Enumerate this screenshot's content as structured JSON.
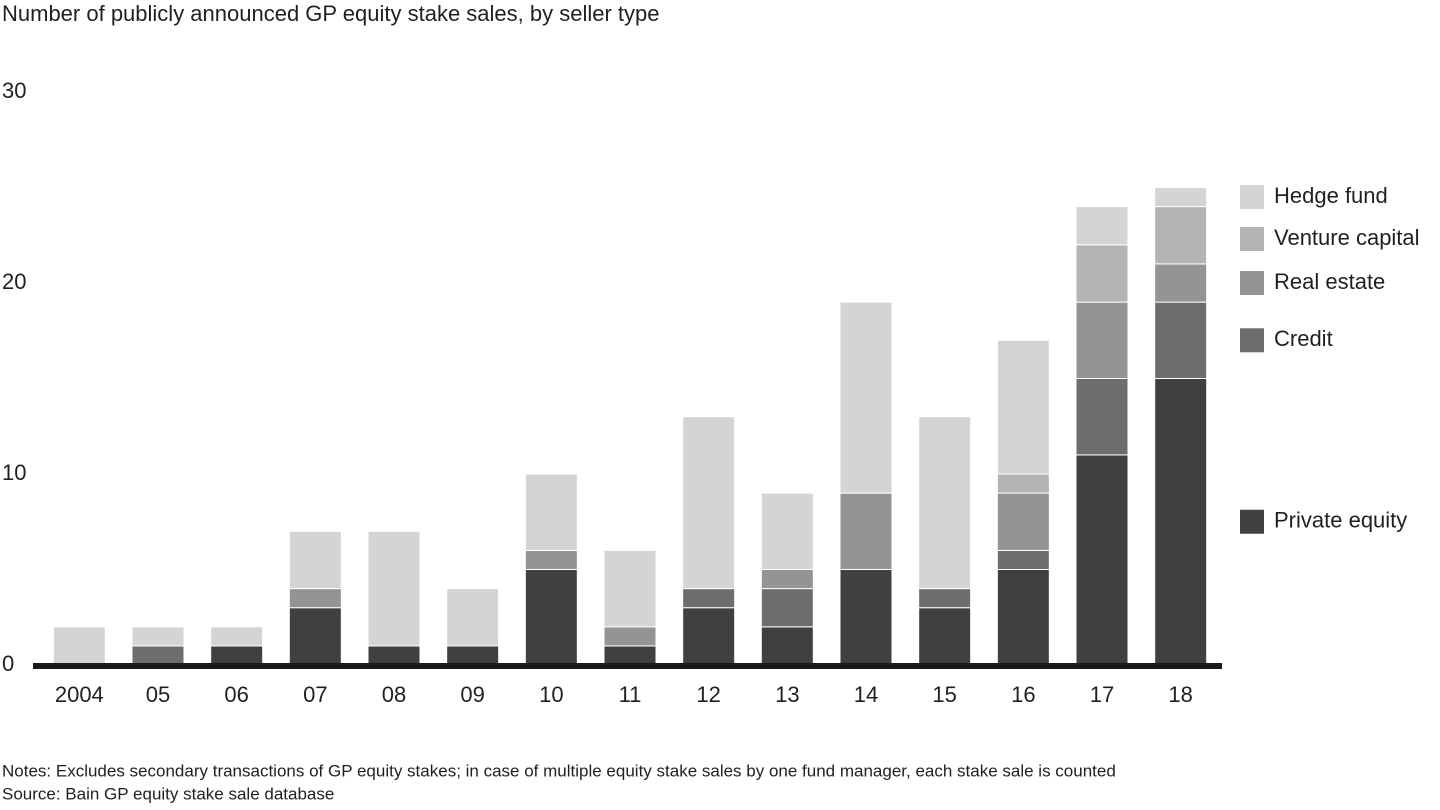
{
  "chart_data": {
    "type": "stacked_bar",
    "title": "Number of publicly announced GP equity stake sales, by seller type",
    "categories": [
      "2004",
      "05",
      "06",
      "07",
      "08",
      "09",
      "10",
      "11",
      "12",
      "13",
      "14",
      "15",
      "16",
      "17",
      "18"
    ],
    "series": [
      {
        "name": "Private equity",
        "color": "#404040",
        "values": [
          0,
          0,
          1,
          3,
          1,
          1,
          5,
          1,
          3,
          2,
          5,
          3,
          5,
          11,
          15
        ]
      },
      {
        "name": "Credit",
        "color": "#6d6d6e",
        "values": [
          0,
          1,
          0,
          0,
          0,
          0,
          0,
          0,
          1,
          2,
          0,
          1,
          1,
          4,
          4
        ]
      },
      {
        "name": "Real estate",
        "color": "#949496",
        "values": [
          0,
          0,
          0,
          1,
          0,
          0,
          1,
          1,
          0,
          1,
          4,
          0,
          3,
          4,
          2
        ]
      },
      {
        "name": "Venture capital",
        "color": "#b3b3b4",
        "values": [
          0,
          0,
          0,
          0,
          0,
          0,
          0,
          0,
          0,
          0,
          0,
          0,
          1,
          3,
          3
        ]
      },
      {
        "name": "Hedge fund",
        "color": "#d4d4d5",
        "values": [
          2,
          1,
          1,
          3,
          6,
          3,
          4,
          4,
          9,
          4,
          10,
          9,
          7,
          2,
          1
        ]
      }
    ],
    "ylim": [
      0,
      30
    ],
    "yticks": [
      0,
      10,
      20,
      30
    ],
    "grid": false,
    "legend": "right",
    "notes": [
      "Notes: Excludes secondary transactions of GP equity stakes; in case of multiple equity stake sales by one fund manager, each stake sale is counted",
      "Source: Bain GP equity stake sale database"
    ]
  }
}
